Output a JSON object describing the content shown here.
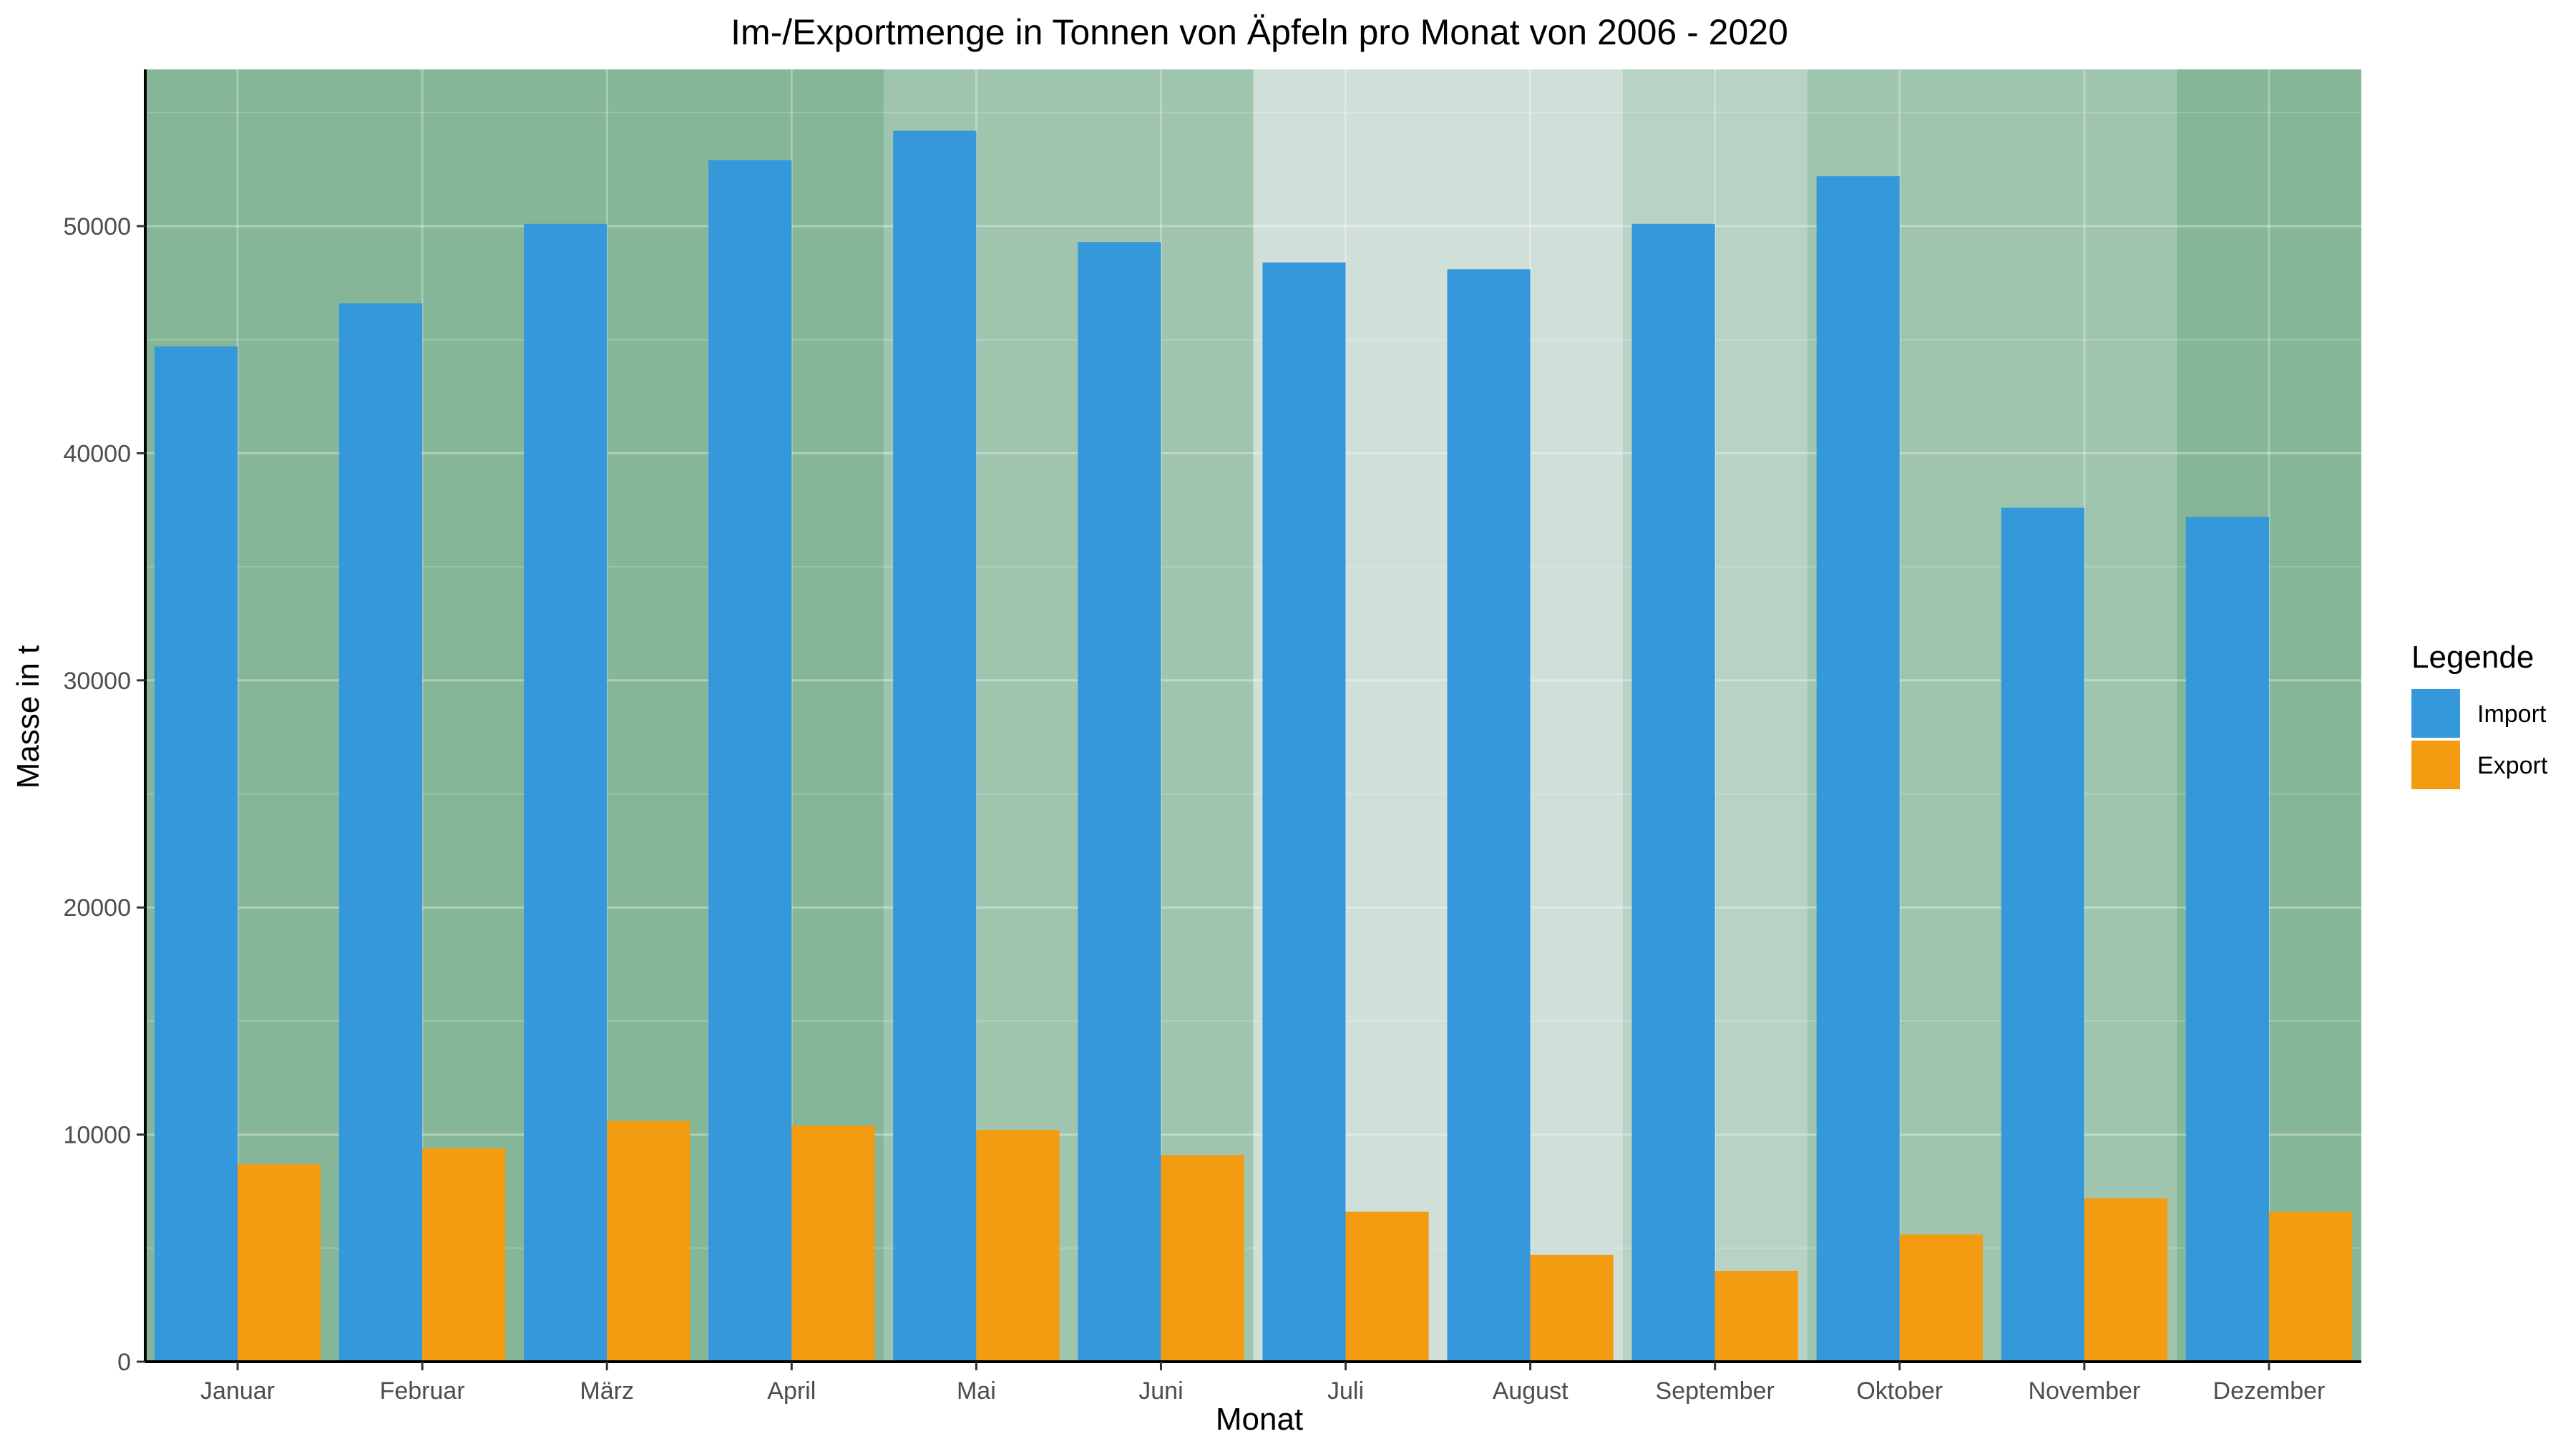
{
  "chart_data": {
    "type": "bar",
    "title": "Im-/Exportmenge in Tonnen von Äpfeln pro Monat von 2006 - 2020",
    "xlabel": "Monat",
    "ylabel": "Masse in t",
    "categories": [
      "Januar",
      "Februar",
      "März",
      "April",
      "Mai",
      "Juni",
      "Juli",
      "August",
      "September",
      "Oktober",
      "November",
      "Dezember"
    ],
    "series": [
      {
        "name": "Import",
        "color": "#3598db",
        "values": [
          44700,
          46600,
          50100,
          52900,
          54200,
          49300,
          48400,
          48100,
          50100,
          52200,
          37600,
          37200
        ]
      },
      {
        "name": "Export",
        "color": "#f39c12",
        "values": [
          8700,
          9400,
          10600,
          10400,
          10200,
          9100,
          6600,
          4700,
          4000,
          5600,
          7200,
          6600
        ]
      }
    ],
    "ylim": [
      0,
      56900
    ],
    "yticks": [
      0,
      10000,
      20000,
      30000,
      40000,
      50000
    ],
    "ytick_labels": [
      "0",
      "10000",
      "20000",
      "30000",
      "40000",
      "50000"
    ],
    "grid": true,
    "legend": {
      "title": "Legende",
      "position": "right"
    },
    "background_bands": [
      {
        "from": "Januar",
        "to": "April",
        "color": "#84b697"
      },
      {
        "from": "Mai",
        "to": "Juni",
        "color": "#9fc5ae"
      },
      {
        "from": "Juli",
        "to": "August",
        "color": "#d1dfd9"
      },
      {
        "from": "September",
        "to": "September",
        "color": "#b8d2c3"
      },
      {
        "from": "Oktober",
        "to": "November",
        "color": "#9fc5ae"
      },
      {
        "from": "Dezember",
        "to": "Dezember",
        "color": "#84b697"
      }
    ],
    "colors": {
      "import": "#3598db",
      "export": "#f39c12",
      "axis": "#000000",
      "text": "#333333"
    }
  }
}
